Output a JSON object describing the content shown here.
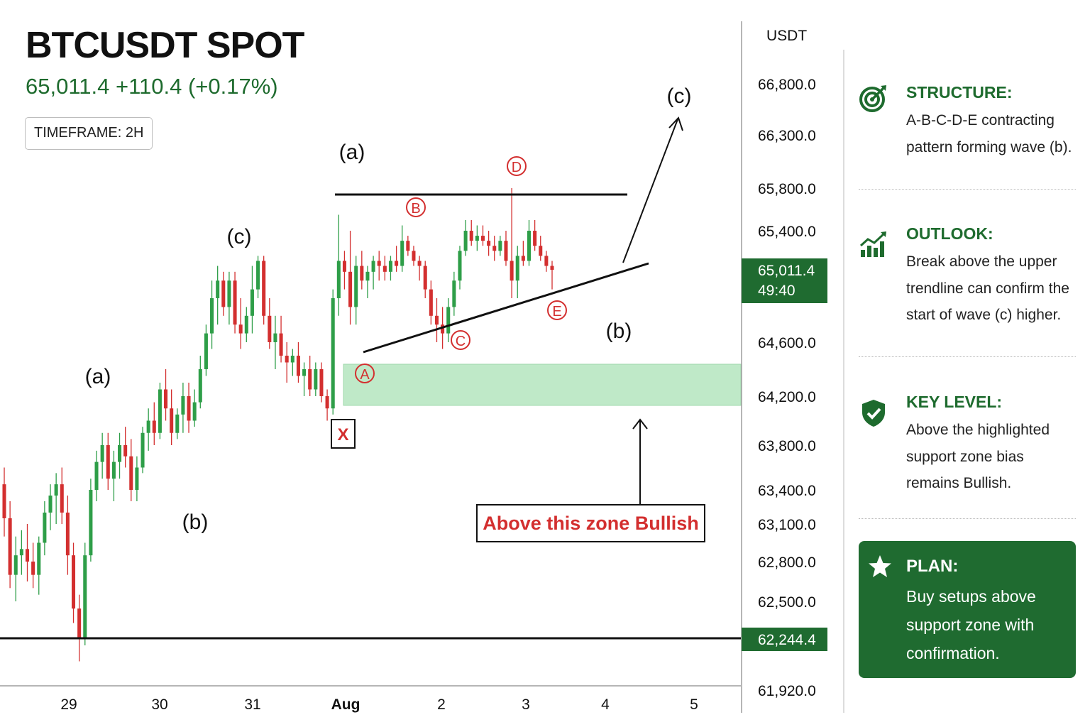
{
  "header": {
    "symbol": "BTCUSDT SPOT",
    "price_change": "65,011.4  +110.4 (+0.17%)",
    "timeframe": "TIMEFRAME: 2H"
  },
  "axis": {
    "currency": "USDT",
    "current_price": "65,011.4",
    "countdown": "49:40",
    "support_price": "62,244.4"
  },
  "colors": {
    "bull": "#2e9e48",
    "bear": "#d32f2f",
    "accent": "#1e6b2e",
    "zone": "#bfe9c8",
    "label_red": "#d32f2f"
  },
  "chart_data": {
    "type": "candlestick",
    "title": "BTCUSDT SPOT",
    "y_axis_label": "USDT",
    "x_tick_labels": [
      "29",
      "30",
      "31",
      "Aug",
      "2",
      "3",
      "4",
      "5"
    ],
    "y_tick_labels": [
      "66,800.0",
      "66,300.0",
      "65,800.0",
      "65,400.0",
      "64,600.0",
      "64,200.0",
      "63,800.0",
      "63,400.0",
      "63,100.0",
      "62,800.0",
      "62,500.0",
      "61,920.0"
    ],
    "last_price": 65011.4,
    "support_line": 62244.4,
    "support_zone": {
      "label": "Above this zone Bullish"
    },
    "wave_labels": [
      "(a)",
      "(b)",
      "(c)",
      "(a)",
      "(b)",
      "(c)"
    ],
    "triangle_points": [
      "A",
      "B",
      "C",
      "D",
      "E"
    ],
    "start_marker": "X",
    "candle_series": [
      {
        "o": 63450,
        "h": 63600,
        "l": 63000,
        "c": 63150
      },
      {
        "o": 63150,
        "h": 63300,
        "l": 62600,
        "c": 62700
      },
      {
        "o": 62700,
        "h": 63000,
        "l": 62500,
        "c": 62850
      },
      {
        "o": 62850,
        "h": 63050,
        "l": 62700,
        "c": 62900
      },
      {
        "o": 62900,
        "h": 63100,
        "l": 62650,
        "c": 62800
      },
      {
        "o": 62800,
        "h": 62950,
        "l": 62600,
        "c": 62700
      },
      {
        "o": 62700,
        "h": 63000,
        "l": 62550,
        "c": 62950
      },
      {
        "o": 62950,
        "h": 63300,
        "l": 62850,
        "c": 63200
      },
      {
        "o": 63200,
        "h": 63450,
        "l": 63050,
        "c": 63350
      },
      {
        "o": 63350,
        "h": 63550,
        "l": 63100,
        "c": 63450
      },
      {
        "o": 63450,
        "h": 63600,
        "l": 63100,
        "c": 63200
      },
      {
        "o": 63200,
        "h": 63350,
        "l": 62700,
        "c": 62850
      },
      {
        "o": 62850,
        "h": 62950,
        "l": 62350,
        "c": 62450
      },
      {
        "o": 62450,
        "h": 62550,
        "l": 62100,
        "c": 62250
      },
      {
        "o": 62250,
        "h": 62950,
        "l": 62200,
        "c": 62850
      },
      {
        "o": 62850,
        "h": 63500,
        "l": 62800,
        "c": 63400
      },
      {
        "o": 63400,
        "h": 63750,
        "l": 63300,
        "c": 63650
      },
      {
        "o": 63650,
        "h": 63900,
        "l": 63500,
        "c": 63800
      },
      {
        "o": 63800,
        "h": 63900,
        "l": 63400,
        "c": 63500
      },
      {
        "o": 63500,
        "h": 63750,
        "l": 63300,
        "c": 63650
      },
      {
        "o": 63650,
        "h": 63900,
        "l": 63500,
        "c": 63800
      },
      {
        "o": 63800,
        "h": 63950,
        "l": 63600,
        "c": 63700
      },
      {
        "o": 63700,
        "h": 63850,
        "l": 63300,
        "c": 63400
      },
      {
        "o": 63400,
        "h": 63700,
        "l": 63300,
        "c": 63600
      },
      {
        "o": 63600,
        "h": 63950,
        "l": 63550,
        "c": 63900
      },
      {
        "o": 63900,
        "h": 64100,
        "l": 63750,
        "c": 64000
      },
      {
        "o": 64000,
        "h": 64150,
        "l": 63800,
        "c": 63900
      },
      {
        "o": 63900,
        "h": 64300,
        "l": 63850,
        "c": 64250
      },
      {
        "o": 64250,
        "h": 64400,
        "l": 64000,
        "c": 64100
      },
      {
        "o": 64100,
        "h": 64250,
        "l": 63800,
        "c": 63900
      },
      {
        "o": 63900,
        "h": 64100,
        "l": 63850,
        "c": 64050
      },
      {
        "o": 64050,
        "h": 64300,
        "l": 63900,
        "c": 64200
      },
      {
        "o": 64200,
        "h": 64300,
        "l": 63900,
        "c": 64000
      },
      {
        "o": 64000,
        "h": 64250,
        "l": 63950,
        "c": 64150
      },
      {
        "o": 64150,
        "h": 64500,
        "l": 64100,
        "c": 64400
      },
      {
        "o": 64400,
        "h": 64700,
        "l": 64350,
        "c": 64650
      },
      {
        "o": 64650,
        "h": 64950,
        "l": 64550,
        "c": 64850
      },
      {
        "o": 64850,
        "h": 65050,
        "l": 64700,
        "c": 64950
      },
      {
        "o": 64950,
        "h": 65000,
        "l": 64750,
        "c": 64800
      },
      {
        "o": 64800,
        "h": 65000,
        "l": 64700,
        "c": 64950
      },
      {
        "o": 64950,
        "h": 65000,
        "l": 64650,
        "c": 64700
      },
      {
        "o": 64700,
        "h": 64850,
        "l": 64550,
        "c": 64650
      },
      {
        "o": 64650,
        "h": 64800,
        "l": 64600,
        "c": 64750
      },
      {
        "o": 64750,
        "h": 65050,
        "l": 64650,
        "c": 64900
      },
      {
        "o": 64900,
        "h": 65150,
        "l": 64850,
        "c": 65100
      },
      {
        "o": 65100,
        "h": 65150,
        "l": 64700,
        "c": 64750
      },
      {
        "o": 64750,
        "h": 64850,
        "l": 64550,
        "c": 64600
      },
      {
        "o": 64600,
        "h": 64750,
        "l": 64400,
        "c": 64650
      },
      {
        "o": 64650,
        "h": 64750,
        "l": 64450,
        "c": 64500
      },
      {
        "o": 64500,
        "h": 64600,
        "l": 64300,
        "c": 64450
      },
      {
        "o": 64450,
        "h": 64550,
        "l": 64350,
        "c": 64500
      },
      {
        "o": 64500,
        "h": 64600,
        "l": 64300,
        "c": 64350
      },
      {
        "o": 64350,
        "h": 64450,
        "l": 64200,
        "c": 64400
      },
      {
        "o": 64400,
        "h": 64500,
        "l": 64200,
        "c": 64250
      },
      {
        "o": 64250,
        "h": 64450,
        "l": 64200,
        "c": 64400
      },
      {
        "o": 64400,
        "h": 64450,
        "l": 64150,
        "c": 64200
      },
      {
        "o": 64200,
        "h": 64250,
        "l": 64000,
        "c": 64100
      },
      {
        "o": 64100,
        "h": 64900,
        "l": 64050,
        "c": 64850
      },
      {
        "o": 64850,
        "h": 65550,
        "l": 64750,
        "c": 65100
      },
      {
        "o": 65100,
        "h": 65200,
        "l": 64900,
        "c": 65000
      },
      {
        "o": 65000,
        "h": 65400,
        "l": 64700,
        "c": 64800
      },
      {
        "o": 64800,
        "h": 65150,
        "l": 64700,
        "c": 65050
      },
      {
        "o": 65050,
        "h": 65200,
        "l": 64900,
        "c": 64950
      },
      {
        "o": 64950,
        "h": 65050,
        "l": 64850,
        "c": 65000
      },
      {
        "o": 65000,
        "h": 65150,
        "l": 64900,
        "c": 65100
      },
      {
        "o": 65100,
        "h": 65200,
        "l": 64950,
        "c": 65050
      },
      {
        "o": 65050,
        "h": 65150,
        "l": 64950,
        "c": 65000
      },
      {
        "o": 65000,
        "h": 65150,
        "l": 64950,
        "c": 65100
      },
      {
        "o": 65100,
        "h": 65250,
        "l": 65000,
        "c": 65050
      },
      {
        "o": 65050,
        "h": 65450,
        "l": 65000,
        "c": 65300
      },
      {
        "o": 65300,
        "h": 65350,
        "l": 65150,
        "c": 65200
      },
      {
        "o": 65200,
        "h": 65250,
        "l": 65050,
        "c": 65100
      },
      {
        "o": 65100,
        "h": 65150,
        "l": 64950,
        "c": 65050
      },
      {
        "o": 65050,
        "h": 65100,
        "l": 64850,
        "c": 64900
      },
      {
        "o": 64900,
        "h": 64950,
        "l": 64700,
        "c": 64750
      },
      {
        "o": 64750,
        "h": 64850,
        "l": 64600,
        "c": 64700
      },
      {
        "o": 64700,
        "h": 64800,
        "l": 64550,
        "c": 64650
      },
      {
        "o": 64650,
        "h": 64850,
        "l": 64600,
        "c": 64800
      },
      {
        "o": 64800,
        "h": 65000,
        "l": 64750,
        "c": 64950
      },
      {
        "o": 64950,
        "h": 65250,
        "l": 64900,
        "c": 65200
      },
      {
        "o": 65200,
        "h": 65500,
        "l": 65150,
        "c": 65400
      },
      {
        "o": 65400,
        "h": 65500,
        "l": 65250,
        "c": 65300
      },
      {
        "o": 65300,
        "h": 65450,
        "l": 65200,
        "c": 65350
      },
      {
        "o": 65350,
        "h": 65450,
        "l": 65250,
        "c": 65300
      },
      {
        "o": 65300,
        "h": 65400,
        "l": 65150,
        "c": 65250
      },
      {
        "o": 65250,
        "h": 65350,
        "l": 65100,
        "c": 65200
      },
      {
        "o": 65200,
        "h": 65350,
        "l": 65150,
        "c": 65300
      },
      {
        "o": 65300,
        "h": 65400,
        "l": 65050,
        "c": 65100
      },
      {
        "o": 65100,
        "h": 65800,
        "l": 64850,
        "c": 64950
      },
      {
        "o": 64950,
        "h": 65250,
        "l": 64850,
        "c": 65150
      },
      {
        "o": 65150,
        "h": 65300,
        "l": 65050,
        "c": 65100
      },
      {
        "o": 65100,
        "h": 65500,
        "l": 65050,
        "c": 65400
      },
      {
        "o": 65400,
        "h": 65500,
        "l": 65200,
        "c": 65250
      },
      {
        "o": 65250,
        "h": 65350,
        "l": 65100,
        "c": 65150
      },
      {
        "o": 65150,
        "h": 65200,
        "l": 65000,
        "c": 65050
      },
      {
        "o": 65050,
        "h": 65100,
        "l": 64900,
        "c": 65011.4
      }
    ]
  },
  "sidebar": {
    "structure": {
      "heading": "STRUCTURE:",
      "lines": [
        "A-B-C-D-E contracting",
        "pattern forming wave (b)."
      ]
    },
    "outlook": {
      "heading": "OUTLOOK:",
      "lines": [
        "Break above the upper",
        "trendline can confirm the",
        "start of wave (c) higher."
      ]
    },
    "key_level": {
      "heading": "KEY LEVEL:",
      "lines": [
        "Above the highlighted",
        "support zone bias",
        "remains Bullish."
      ]
    },
    "plan": {
      "heading": "PLAN:",
      "lines": [
        "Buy setups above",
        "support zone with",
        "confirmation."
      ]
    }
  }
}
